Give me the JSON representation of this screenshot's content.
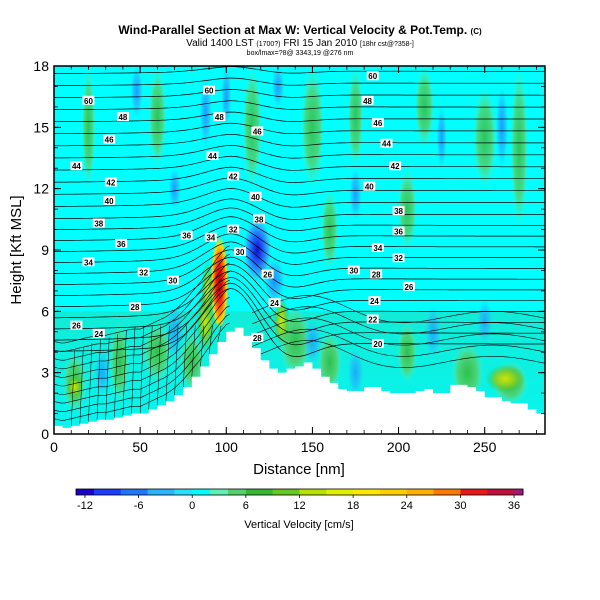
{
  "chart_data": {
    "type": "heatmap",
    "title": "Wind-Parallel Section at Max W: Vertical Velocity & Pot.Temp.",
    "title_mark": "(C)",
    "subtitle_main": "Valid 1400 LST",
    "subtitle_small1": "(1700?)",
    "subtitle_mid": "FRI 15 Jan 2010",
    "subtitle_small2": "[18hr cst@?358-]",
    "info_line": "box/lmax=?8@ 3343,19 @276 nm",
    "xlabel": "Distance [nm]",
    "ylabel": "Height [Kft MSL]",
    "xlim": [
      0,
      285
    ],
    "ylim": [
      0,
      18
    ],
    "x_ticks": [
      "0",
      "50",
      "100",
      "150",
      "200",
      "250"
    ],
    "y_ticks": [
      "0",
      "3",
      "6",
      "9",
      "12",
      "15",
      "18"
    ],
    "colorbar_label": "Vertical Velocity [cm/s]",
    "colorbar_ticks": [
      "-12",
      "-6",
      "0",
      "6",
      "12",
      "18",
      "24",
      "30",
      "36"
    ],
    "colorbar_range": [
      -13,
      37
    ],
    "colors": {
      "strong_down": "#1a1ae0",
      "down": "#1e78ff",
      "weak_down": "#28c8ff",
      "neutral": "#00ffff",
      "weak_up": "#5ef0b4",
      "up": "#33b833",
      "moderate_up": "#b8e000",
      "strong_up": "#ffd800",
      "very_strong_up": "#e01010",
      "terrain": "#ffffff"
    },
    "terrain_profile": {
      "x": [
        0,
        5,
        10,
        15,
        20,
        25,
        30,
        35,
        40,
        45,
        50,
        55,
        60,
        65,
        70,
        75,
        80,
        85,
        90,
        95,
        100,
        105,
        110,
        115,
        120,
        125,
        130,
        135,
        140,
        145,
        150,
        155,
        160,
        165,
        170,
        175,
        180,
        185,
        190,
        195,
        200,
        205,
        210,
        215,
        220,
        225,
        230,
        235,
        240,
        245,
        250,
        255,
        260,
        265,
        270,
        275,
        280,
        285
      ],
      "height": [
        0.4,
        0.3,
        0.4,
        0.5,
        0.6,
        0.7,
        0.7,
        0.8,
        0.9,
        1.0,
        1.0,
        1.2,
        1.4,
        1.6,
        1.9,
        2.3,
        2.8,
        3.3,
        3.9,
        4.5,
        5.0,
        5.2,
        4.8,
        4.2,
        3.6,
        3.2,
        3.0,
        3.2,
        3.3,
        3.5,
        3.2,
        2.8,
        2.5,
        2.2,
        2.1,
        2.1,
        2.3,
        2.3,
        2.1,
        2.0,
        2.0,
        2.0,
        2.1,
        2.2,
        2.0,
        2.0,
        2.4,
        2.4,
        2.3,
        2.1,
        1.8,
        1.8,
        1.6,
        1.5,
        1.5,
        1.2,
        1.0,
        1.0
      ]
    },
    "contour_labels": [
      {
        "text": "60",
        "x": 20,
        "y": 16.3
      },
      {
        "text": "60",
        "x": 90,
        "y": 16.8
      },
      {
        "text": "60",
        "x": 185,
        "y": 17.5
      },
      {
        "text": "48",
        "x": 40,
        "y": 15.5
      },
      {
        "text": "48",
        "x": 96,
        "y": 15.5
      },
      {
        "text": "48",
        "x": 182,
        "y": 16.3
      },
      {
        "text": "46",
        "x": 32,
        "y": 14.4
      },
      {
        "text": "46",
        "x": 118,
        "y": 14.8
      },
      {
        "text": "46",
        "x": 188,
        "y": 15.2
      },
      {
        "text": "44",
        "x": 13,
        "y": 13.1
      },
      {
        "text": "44",
        "x": 92,
        "y": 13.6
      },
      {
        "text": "44",
        "x": 193,
        "y": 14.2
      },
      {
        "text": "42",
        "x": 33,
        "y": 12.3
      },
      {
        "text": "42",
        "x": 104,
        "y": 12.6
      },
      {
        "text": "42",
        "x": 198,
        "y": 13.1
      },
      {
        "text": "40",
        "x": 32,
        "y": 11.4
      },
      {
        "text": "40",
        "x": 117,
        "y": 11.6
      },
      {
        "text": "40",
        "x": 183,
        "y": 12.1
      },
      {
        "text": "38",
        "x": 26,
        "y": 10.3
      },
      {
        "text": "38",
        "x": 119,
        "y": 10.5
      },
      {
        "text": "38",
        "x": 200,
        "y": 10.9
      },
      {
        "text": "36",
        "x": 39,
        "y": 9.3
      },
      {
        "text": "36",
        "x": 77,
        "y": 9.7
      },
      {
        "text": "36",
        "x": 200,
        "y": 9.9
      },
      {
        "text": "34",
        "x": 20,
        "y": 8.4
      },
      {
        "text": "34",
        "x": 91,
        "y": 9.6
      },
      {
        "text": "34",
        "x": 188,
        "y": 9.1
      },
      {
        "text": "32",
        "x": 104,
        "y": 10.0
      },
      {
        "text": "32",
        "x": 52,
        "y": 7.9
      },
      {
        "text": "32",
        "x": 200,
        "y": 8.6
      },
      {
        "text": "30",
        "x": 69,
        "y": 7.5
      },
      {
        "text": "30",
        "x": 108,
        "y": 8.9
      },
      {
        "text": "30",
        "x": 174,
        "y": 8.0
      },
      {
        "text": "28",
        "x": 47,
        "y": 6.2
      },
      {
        "text": "28",
        "x": 187,
        "y": 7.8
      },
      {
        "text": "26",
        "x": 13,
        "y": 5.3
      },
      {
        "text": "26",
        "x": 124,
        "y": 7.8
      },
      {
        "text": "26",
        "x": 206,
        "y": 7.2
      },
      {
        "text": "24",
        "x": 26,
        "y": 4.9
      },
      {
        "text": "24",
        "x": 128,
        "y": 6.4
      },
      {
        "text": "24",
        "x": 186,
        "y": 6.5
      },
      {
        "text": "22",
        "x": 185,
        "y": 5.6
      },
      {
        "text": "28",
        "x": 118,
        "y": 4.7
      },
      {
        "text": "20",
        "x": 188,
        "y": 4.4
      }
    ]
  }
}
